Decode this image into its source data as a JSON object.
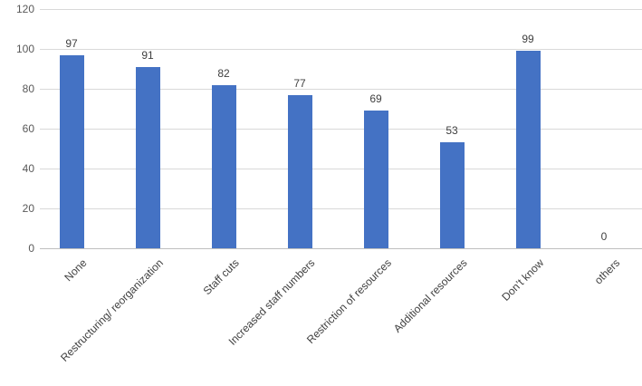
{
  "chart_data": {
    "type": "bar",
    "title": "",
    "xlabel": "",
    "ylabel": "",
    "categories": [
      "None",
      "Restructuring/ reorganization",
      "Staff cuts",
      "Increased staff numbers",
      "Restriction of resources",
      "Additional resources",
      "Don’t know",
      "others"
    ],
    "values": [
      97,
      91,
      82,
      77,
      69,
      53,
      99,
      0
    ],
    "data_labels": [
      97,
      91,
      82,
      77,
      69,
      53,
      99,
      0
    ],
    "ylim": [
      0,
      120
    ],
    "yticks": [
      0,
      20,
      40,
      60,
      80,
      100,
      120
    ],
    "grid": true,
    "legend": "none",
    "colors": {
      "bar": "#4472C4",
      "gridline": "#D9D9D9",
      "axis_line": "#BFBFBF",
      "tick_label_color": "#595959",
      "data_label_color": "#404040",
      "category_label_color": "#404040",
      "background": "#FFFFFF"
    }
  }
}
